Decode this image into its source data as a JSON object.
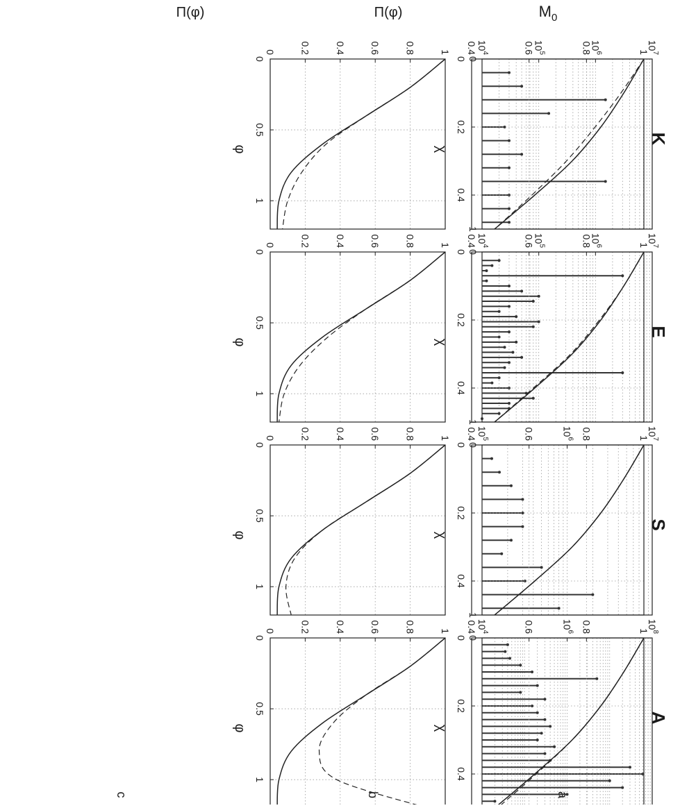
{
  "figure": {
    "row_titles": [
      "K",
      "E",
      "S",
      "A"
    ],
    "column_letters": [
      "a",
      "b",
      "c"
    ],
    "panel_a_ylabel": "M",
    "panel_a_ylabel_sub": "0",
    "panel_b_xlabel": "χ",
    "panel_c_xlabel": "φ",
    "shared_ylabel": "Π(φ)"
  },
  "chart_data": [
    {
      "type": "bar",
      "row": "K",
      "panel": "a",
      "log_y": true,
      "xlim": [
        0,
        1
      ],
      "ylim": [
        10000,
        10000000
      ],
      "xticks": [
        "0",
        "1"
      ],
      "yticks": [
        "10^4",
        "10^5",
        "10^6",
        "10^7"
      ],
      "x": [
        0.08,
        0.16,
        0.24,
        0.32,
        0.4,
        0.48,
        0.56,
        0.64,
        0.72,
        0.8,
        0.88,
        0.96
      ],
      "values": [
        30000,
        50000,
        1500000,
        150000,
        25000,
        30000,
        50000,
        30000,
        1500000,
        30000,
        30000,
        30000
      ],
      "line_color": "#333333",
      "grid": "dotted"
    },
    {
      "type": "bar",
      "row": "E",
      "panel": "a",
      "log_y": true,
      "xlim": [
        0,
        1
      ],
      "ylim": [
        10000,
        10000000
      ],
      "xticks": [
        "0",
        "1"
      ],
      "yticks": [
        "10^4",
        "10^5",
        "10^6",
        "10^7"
      ],
      "x": [
        0.05,
        0.08,
        0.11,
        0.14,
        0.17,
        0.2,
        0.23,
        0.26,
        0.29,
        0.32,
        0.35,
        0.38,
        0.41,
        0.44,
        0.47,
        0.5,
        0.53,
        0.56,
        0.59,
        0.62,
        0.65,
        0.68,
        0.71,
        0.74,
        0.77,
        0.8,
        0.83,
        0.86,
        0.89,
        0.92,
        0.95,
        0.98
      ],
      "values": [
        20000,
        15000,
        12000,
        3000000,
        12000,
        30000,
        50000,
        100000,
        80000,
        30000,
        20000,
        40000,
        100000,
        80000,
        30000,
        20000,
        40000,
        25000,
        35000,
        50000,
        30000,
        25000,
        3000000,
        20000,
        15000,
        30000,
        60000,
        80000,
        30000,
        30000,
        20000,
        10000
      ],
      "line_color": "#333333",
      "grid": "dotted"
    },
    {
      "type": "bar",
      "row": "S",
      "panel": "a",
      "log_y": true,
      "xlim": [
        0,
        1
      ],
      "ylim": [
        100000,
        10000000
      ],
      "xticks": [
        "0",
        "1"
      ],
      "yticks": [
        "10^5",
        "10^6",
        "10^7"
      ],
      "x": [
        0.08,
        0.16,
        0.24,
        0.32,
        0.4,
        0.48,
        0.56,
        0.64,
        0.72,
        0.8,
        0.88,
        0.96
      ],
      "values": [
        130000,
        160000,
        220000,
        300000,
        300000,
        300000,
        220000,
        170000,
        500000,
        320000,
        2000000,
        800000
      ],
      "line_color": "#333333",
      "grid": "dotted"
    },
    {
      "type": "bar",
      "row": "A",
      "panel": "a",
      "log_y": true,
      "xlim": [
        0,
        1
      ],
      "ylim": [
        10000,
        100000000
      ],
      "xticks": [
        "0",
        "1"
      ],
      "yticks": [
        "10^4",
        "10^6",
        "10^8"
      ],
      "x": [
        0.04,
        0.08,
        0.12,
        0.16,
        0.2,
        0.24,
        0.28,
        0.32,
        0.36,
        0.4,
        0.44,
        0.48,
        0.52,
        0.56,
        0.6,
        0.64,
        0.68,
        0.72,
        0.76,
        0.8,
        0.84,
        0.88,
        0.92,
        0.96
      ],
      "values": [
        40000,
        35000,
        45000,
        80000,
        150000,
        5000000,
        200000,
        80000,
        300000,
        150000,
        200000,
        300000,
        400000,
        250000,
        200000,
        500000,
        300000,
        400000,
        30000000,
        60000000,
        10000000,
        20000000,
        1000000,
        20000
      ],
      "line_color": "#333333",
      "grid": "dotted"
    },
    {
      "type": "line",
      "row": "K",
      "panel": "b",
      "xlabel": "χ",
      "ylabel": "Π(φ)",
      "xlim": [
        0,
        0.5
      ],
      "ylim": [
        0.4,
        1
      ],
      "xticks": [
        0,
        0.2,
        0.4
      ],
      "yticks": [
        0.4,
        0.6,
        0.8,
        1
      ],
      "series": [
        {
          "style": "solid",
          "x": [
            0,
            0.1,
            0.2,
            0.3,
            0.4,
            0.5
          ],
          "values": [
            1,
            0.93,
            0.85,
            0.75,
            0.62,
            0.48
          ]
        },
        {
          "style": "dashed",
          "x": [
            0,
            0.1,
            0.2,
            0.3,
            0.4,
            0.5
          ],
          "values": [
            1,
            0.92,
            0.83,
            0.73,
            0.61,
            0.48
          ]
        }
      ]
    },
    {
      "type": "line",
      "row": "E",
      "panel": "b",
      "xlabel": "χ",
      "ylabel": "",
      "xlim": [
        0,
        0.5
      ],
      "ylim": [
        0.4,
        1
      ],
      "xticks": [
        0,
        0.2,
        0.4
      ],
      "yticks": [
        0.4,
        0.6,
        0.8,
        1
      ],
      "series": [
        {
          "style": "solid",
          "x": [
            0,
            0.1,
            0.2,
            0.3,
            0.4,
            0.5
          ],
          "values": [
            1,
            0.93,
            0.85,
            0.75,
            0.62,
            0.48
          ]
        },
        {
          "style": "dashed",
          "x": [
            0,
            0.1,
            0.2,
            0.3,
            0.4,
            0.5
          ],
          "values": [
            1,
            0.93,
            0.845,
            0.745,
            0.615,
            0.48
          ]
        }
      ]
    },
    {
      "type": "line",
      "row": "S",
      "panel": "b",
      "xlabel": "χ",
      "ylabel": "",
      "xlim": [
        0,
        0.5
      ],
      "ylim": [
        0.4,
        1
      ],
      "xticks": [
        0,
        0.2,
        0.4
      ],
      "yticks": [
        0.4,
        0.6,
        0.8,
        1
      ],
      "series": [
        {
          "style": "solid",
          "x": [
            0,
            0.1,
            0.2,
            0.3,
            0.4,
            0.5
          ],
          "values": [
            1,
            0.93,
            0.85,
            0.75,
            0.62,
            0.48
          ]
        },
        {
          "style": "dashed",
          "x": [
            0,
            0.1,
            0.2,
            0.3,
            0.4,
            0.5
          ],
          "values": [
            1,
            0.93,
            0.85,
            0.75,
            0.62,
            0.48
          ]
        }
      ]
    },
    {
      "type": "line",
      "row": "A",
      "panel": "b",
      "xlabel": "χ",
      "ylabel": "",
      "xlim": [
        0,
        0.5
      ],
      "ylim": [
        0.4,
        1
      ],
      "xticks": [
        0,
        0.2,
        0.4
      ],
      "yticks": [
        0.4,
        0.6,
        0.8,
        1
      ],
      "series": [
        {
          "style": "solid",
          "x": [
            0,
            0.1,
            0.2,
            0.3,
            0.4,
            0.5
          ],
          "values": [
            1,
            0.93,
            0.85,
            0.75,
            0.62,
            0.48
          ]
        },
        {
          "style": "dashed",
          "x": [
            0,
            0.1,
            0.2,
            0.3,
            0.4,
            0.5
          ],
          "values": [
            1,
            0.93,
            0.85,
            0.75,
            0.625,
            0.49
          ]
        }
      ]
    },
    {
      "type": "line",
      "row": "K",
      "panel": "c",
      "xlabel": "φ",
      "ylabel": "Π(φ)",
      "xlim": [
        0,
        1.2
      ],
      "ylim": [
        0,
        1
      ],
      "xticks": [
        0,
        0.5,
        1
      ],
      "yticks": [
        0,
        0.2,
        0.4,
        0.6,
        0.8,
        1
      ],
      "series": [
        {
          "style": "solid",
          "x": [
            0,
            0.2,
            0.4,
            0.6,
            0.8,
            1.0,
            1.2
          ],
          "values": [
            1,
            0.8,
            0.55,
            0.3,
            0.12,
            0.05,
            0.04
          ]
        },
        {
          "style": "dashed",
          "x": [
            0,
            0.2,
            0.4,
            0.6,
            0.8,
            1.0,
            1.2
          ],
          "values": [
            1,
            0.8,
            0.55,
            0.32,
            0.18,
            0.1,
            0.07
          ]
        }
      ]
    },
    {
      "type": "line",
      "row": "E",
      "panel": "c",
      "xlabel": "φ",
      "ylabel": "",
      "xlim": [
        0,
        1.2
      ],
      "ylim": [
        0,
        1
      ],
      "xticks": [
        0,
        0.5,
        1
      ],
      "yticks": [
        0,
        0.2,
        0.4,
        0.6,
        0.8,
        1
      ],
      "series": [
        {
          "style": "solid",
          "x": [
            0,
            0.2,
            0.4,
            0.6,
            0.8,
            1.0,
            1.2
          ],
          "values": [
            1,
            0.8,
            0.55,
            0.3,
            0.12,
            0.05,
            0.04
          ]
        },
        {
          "style": "dashed",
          "x": [
            0,
            0.2,
            0.4,
            0.6,
            0.8,
            1.0,
            1.2
          ],
          "values": [
            1,
            0.8,
            0.55,
            0.33,
            0.17,
            0.08,
            0.05
          ]
        }
      ]
    },
    {
      "type": "line",
      "row": "S",
      "panel": "c",
      "xlabel": "φ",
      "ylabel": "",
      "xlim": [
        0,
        1.2
      ],
      "ylim": [
        0,
        1
      ],
      "xticks": [
        0,
        0.5,
        1
      ],
      "yticks": [
        0,
        0.2,
        0.4,
        0.6,
        0.8,
        1
      ],
      "series": [
        {
          "style": "solid",
          "x": [
            0,
            0.2,
            0.4,
            0.6,
            0.8,
            1.0,
            1.2
          ],
          "values": [
            1,
            0.8,
            0.55,
            0.3,
            0.12,
            0.05,
            0.04
          ]
        },
        {
          "style": "dashed",
          "x": [
            0,
            0.2,
            0.4,
            0.6,
            0.8,
            1.0,
            1.2
          ],
          "values": [
            1,
            0.8,
            0.55,
            0.3,
            0.14,
            0.09,
            0.12
          ]
        }
      ]
    },
    {
      "type": "line",
      "row": "A",
      "panel": "c",
      "xlabel": "φ",
      "ylabel": "",
      "xlim": [
        0,
        1.2
      ],
      "ylim": [
        0,
        1
      ],
      "xticks": [
        0,
        0.5,
        1
      ],
      "yticks": [
        0,
        0.2,
        0.4,
        0.6,
        0.8,
        1
      ],
      "series": [
        {
          "style": "solid",
          "x": [
            0,
            0.2,
            0.4,
            0.6,
            0.8,
            1.0,
            1.2
          ],
          "values": [
            1,
            0.8,
            0.55,
            0.3,
            0.12,
            0.05,
            0.04
          ]
        },
        {
          "style": "dashed",
          "x": [
            0,
            0.2,
            0.4,
            0.6,
            0.8,
            1.0,
            1.2
          ],
          "values": [
            1,
            0.8,
            0.55,
            0.36,
            0.28,
            0.38,
            0.9
          ]
        }
      ]
    }
  ]
}
